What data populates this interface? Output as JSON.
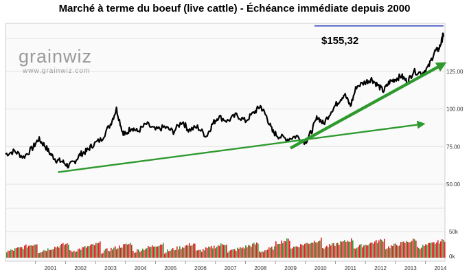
{
  "title": "Marché à terme du boeuf (live cattle) - Échéance immédiate depuis 2000",
  "watermark": {
    "brand": "grainwiz",
    "url": "www.grainwiz.com"
  },
  "annotation": {
    "label": "$155,32",
    "value": 155.32
  },
  "colors": {
    "price": "#000000",
    "trend": "#2e9a2e",
    "level_line": "#2f3fb8",
    "volume_up": "#2f9a2f",
    "volume_down": "#dd2222"
  },
  "chart_data": {
    "type": "line",
    "x_range": [
      2000.0,
      2014.65
    ],
    "x_ticks": [
      "2001",
      "2002",
      "2003",
      "2004",
      "2005",
      "2006",
      "2007",
      "2008",
      "2009",
      "2010",
      "2011",
      "2012",
      "2013",
      "2014"
    ],
    "y_ticks": [
      "50.00",
      "75.00",
      "100.00",
      "125.00"
    ],
    "ylim": [
      50,
      155.32
    ],
    "volume_ticks": [
      "50k",
      "0k"
    ],
    "volume_ylim": [
      0,
      60
    ],
    "grid": true,
    "series": [
      {
        "x": [
          2000.0,
          2000.3,
          2000.6,
          2000.9,
          2001.1,
          2001.3,
          2001.5,
          2001.7,
          2001.9,
          2002.1,
          2002.3,
          2002.5,
          2002.7,
          2002.9,
          2003.2,
          2003.5,
          2003.7,
          2003.9,
          2004.0,
          2004.2,
          2004.4,
          2004.7,
          2005.0,
          2005.3,
          2005.6,
          2005.9,
          2006.1,
          2006.4,
          2006.7,
          2006.9,
          2007.1,
          2007.4,
          2007.7,
          2008.0,
          2008.3,
          2008.5,
          2008.7,
          2008.9,
          2009.1,
          2009.4,
          2009.7,
          2010.0,
          2010.2,
          2010.4,
          2010.6,
          2010.9,
          2011.1,
          2011.3,
          2011.5,
          2011.7,
          2012.0,
          2012.2,
          2012.4,
          2012.6,
          2012.8,
          2013.0,
          2013.2,
          2013.4,
          2013.6,
          2013.9,
          2014.1,
          2014.3,
          2014.45,
          2014.55,
          2014.6
        ],
        "values": [
          70,
          72,
          68,
          74,
          80,
          76,
          70,
          66,
          65,
          62,
          65,
          70,
          72,
          76,
          80,
          90,
          100,
          85,
          83,
          88,
          85,
          90,
          86,
          88,
          85,
          92,
          86,
          88,
          82,
          90,
          95,
          92,
          96,
          92,
          98,
          102,
          95,
          85,
          82,
          80,
          82,
          78,
          85,
          95,
          90,
          100,
          105,
          110,
          102,
          115,
          118,
          120,
          116,
          112,
          118,
          120,
          122,
          118,
          125,
          124,
          128,
          138,
          140,
          146,
          150
        ]
      }
    ],
    "trendlines": [
      {
        "x": [
          2001.75,
          2013.9
        ],
        "values": [
          58,
          90
        ]
      },
      {
        "x": [
          2009.5,
          2014.6
        ],
        "values": [
          74,
          130
        ]
      }
    ],
    "level_line": {
      "x": [
        2010.3,
        2014.6
      ],
      "value": 155.32
    }
  }
}
